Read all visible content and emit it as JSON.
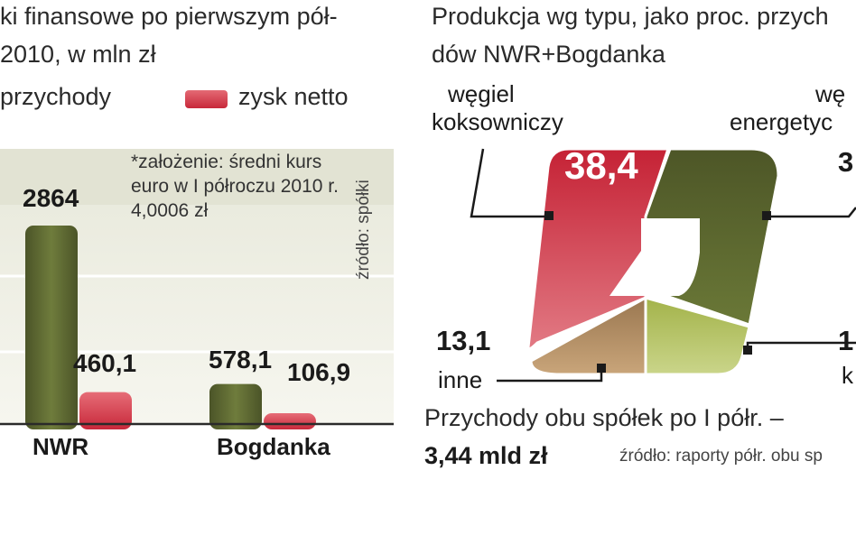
{
  "left_panel": {
    "title_line1": "ki finansowe po pierwszym pół-",
    "title_line2": "2010, w mln zł",
    "legend_revenue": "przychody",
    "legend_profit": "zysk netto",
    "note_line1": "*założenie: średni kurs",
    "note_line2": "euro w I półroczu 2010 r.",
    "note_line3": "4,0006 zł",
    "source": "źródło: spółki"
  },
  "right_panel": {
    "title_line1": "Produkcja wg typu, jako proc. przych",
    "title_line2": "dów NWR+Bogdanka",
    "label_coking_1": "węgiel",
    "label_coking_2": "koksowniczy",
    "label_energy_1": "wę",
    "label_energy_2": "energetyc",
    "label_other": "inne",
    "label_k": "k",
    "value_coking": "38,4",
    "value_energy_partial": "3",
    "value_other": "13,1",
    "value_k_partial": "1",
    "subtitle": "Przychody obu spółek po I półr. –",
    "total": "3,44 mld zł",
    "source": "źródło: raporty półr. obu sp"
  },
  "colors": {
    "revenue": "#5a6630",
    "profit": "#d22c3e",
    "coking": "#d22c3e",
    "energy": "#5a6630",
    "other": "#b08a5a",
    "fourth": "#b7c45a"
  },
  "chart_data": [
    {
      "type": "bar",
      "categories": [
        "NWR",
        "Bogdanka"
      ],
      "series": [
        {
          "name": "przychody",
          "values": [
            2864,
            578.1
          ]
        },
        {
          "name": "zysk netto",
          "values": [
            460.1,
            106.9
          ]
        }
      ],
      "value_labels": [
        [
          "2864",
          "460,1"
        ],
        [
          "578,1",
          "106,9"
        ]
      ],
      "legend_position": "top"
    },
    {
      "type": "pie",
      "labels": [
        "węgiel koksowniczy",
        "węgiel energetyczny",
        "inne",
        "k"
      ],
      "values": [
        38.4,
        null,
        13.1,
        null
      ],
      "visible_value_labels": [
        "38,4",
        "3",
        "13,1",
        "1"
      ]
    }
  ]
}
